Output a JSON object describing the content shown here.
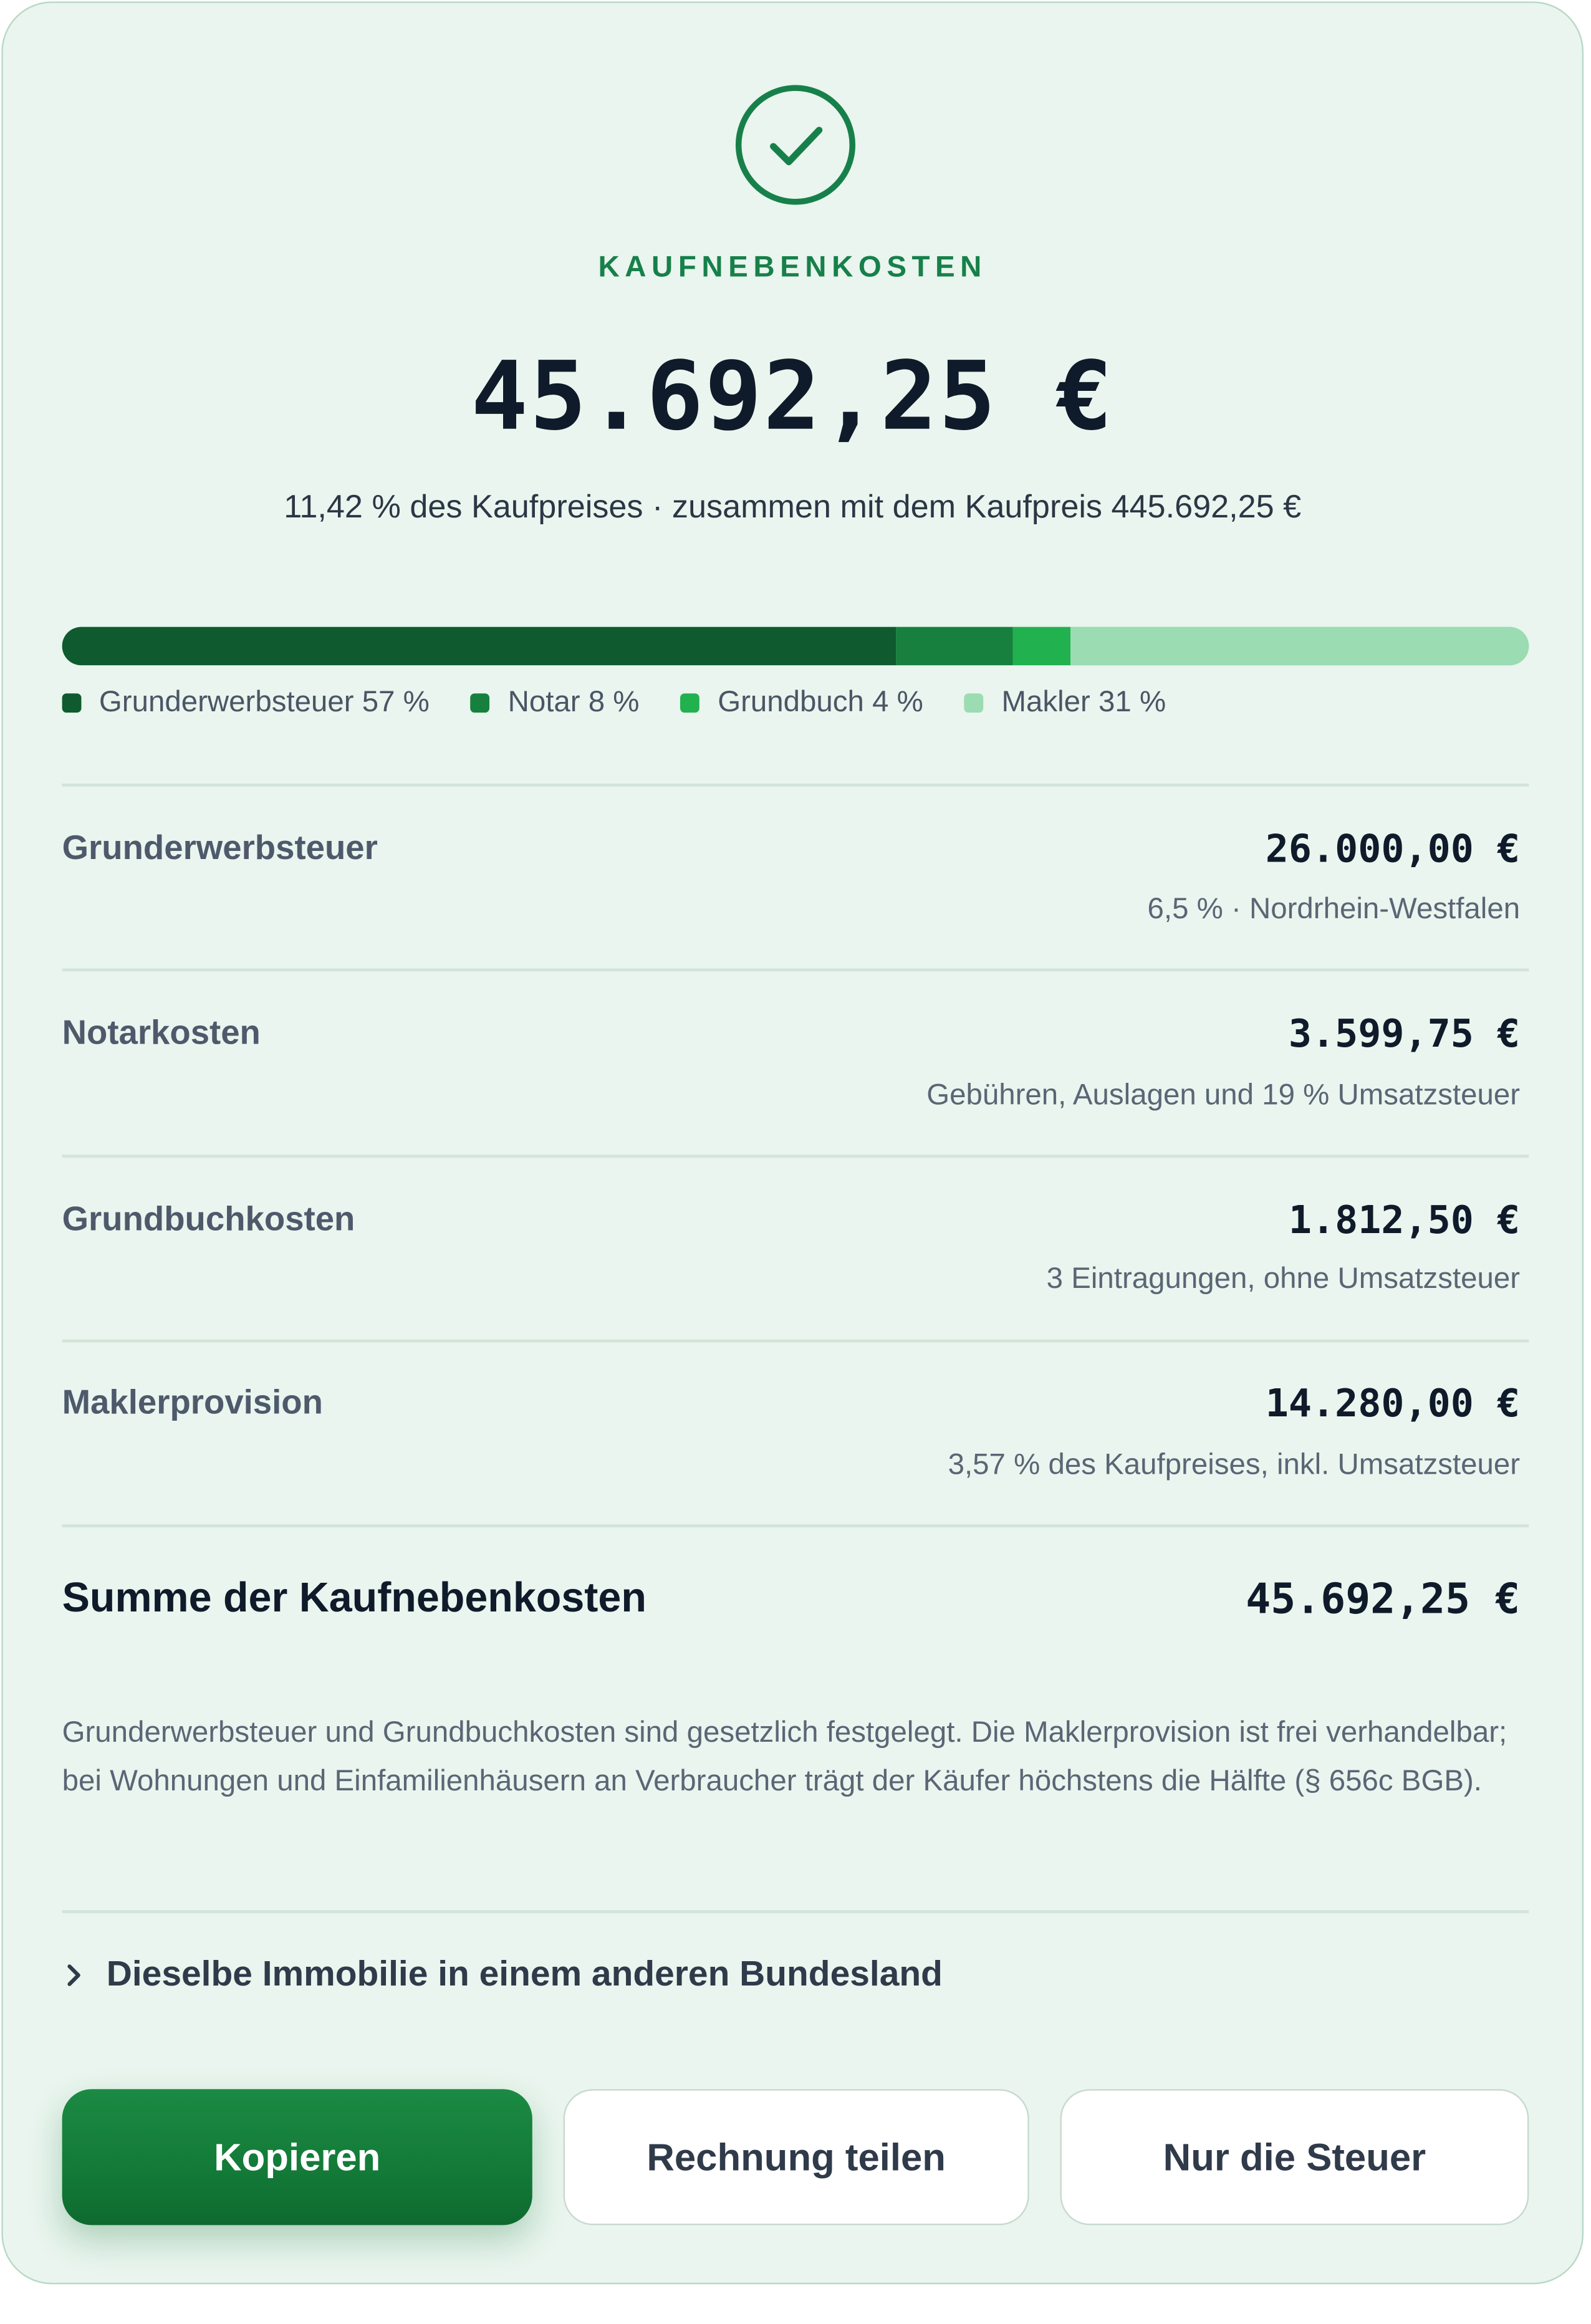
{
  "header": {
    "kicker": "KAUFNEBENKOSTEN",
    "total": "45.692,25 €",
    "subline": "11,42 % des Kaufpreises · zusammen mit dem Kaufpreis 445.692,25 €"
  },
  "breakdown": {
    "segments": [
      {
        "label": "Grunderwerbsteuer 57 %",
        "percent": 56.9,
        "color": "#0f5a2e"
      },
      {
        "label": "Notar 8 %",
        "percent": 7.9,
        "color": "#17803f"
      },
      {
        "label": "Grundbuch 4 %",
        "percent": 4.0,
        "color": "#22b14f"
      },
      {
        "label": "Makler 31 %",
        "percent": 31.2,
        "color": "#9bdcb2"
      }
    ]
  },
  "rows": [
    {
      "label": "Grunderwerbsteuer",
      "value": "26.000,00 €",
      "note": "6,5 % · Nordrhein-Westfalen"
    },
    {
      "label": "Notarkosten",
      "value": "3.599,75 €",
      "note": "Gebühren, Auslagen und 19 % Umsatzsteuer"
    },
    {
      "label": "Grundbuchkosten",
      "value": "1.812,50 €",
      "note": "3 Eintragungen, ohne Umsatzsteuer"
    },
    {
      "label": "Maklerprovision",
      "value": "14.280,00 €",
      "note": "3,57 % des Kaufpreises, inkl. Umsatzsteuer"
    }
  ],
  "sum": {
    "label": "Summe der Kaufnebenkosten",
    "value": "45.692,25 €"
  },
  "note": "Grunderwerbsteuer und Grundbuchkosten sind gesetzlich festgelegt. Die Maklerprovision ist frei verhandelbar; bei Wohnungen und Einfamilienhäusern an Verbraucher trägt der Käufer höchstens die Hälfte (§ 656c BGB).",
  "expander": {
    "label": "Dieselbe Immobilie in einem anderen Bundesland"
  },
  "actions": {
    "copy": "Kopieren",
    "share": "Rechnung teilen",
    "tax_only": "Nur die Steuer"
  },
  "icons": {
    "success": "check-circle-icon",
    "expander": "chevron-right-icon"
  }
}
